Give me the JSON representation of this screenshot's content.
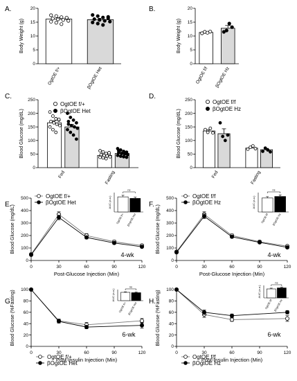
{
  "chart_data": [
    {
      "panel": "A.",
      "type": "bar",
      "ylabel": "Body Weight (g)",
      "ylim": [
        0,
        20
      ],
      "yticks": [
        0,
        5,
        10,
        15,
        20
      ],
      "categories": [
        "OgtOE f/+",
        "βOgtOE Het"
      ],
      "values": [
        16.1,
        15.9
      ],
      "errors": [
        0.5,
        0.5
      ],
      "fills": [
        "#ffffff",
        "#d9d9d9"
      ],
      "points": [
        [
          17.5,
          17.2,
          16.8,
          16.5,
          16.3,
          16.0,
          15.8,
          15.5,
          15.2,
          14.8,
          14.3,
          16.6
        ],
        [
          17.6,
          17.2,
          16.7,
          16.4,
          16.1,
          15.8,
          15.5,
          15.2,
          14.9,
          14.5,
          14.0,
          16.9
        ]
      ],
      "point_fill": [
        "open",
        "filled"
      ]
    },
    {
      "panel": "B.",
      "type": "bar",
      "ylabel": "Body Weight (g)",
      "ylim": [
        0,
        20
      ],
      "yticks": [
        0,
        5,
        10,
        15,
        20
      ],
      "categories": [
        "OgtOE f/f",
        "βOgtOE Hz"
      ],
      "values": [
        11.3,
        12.8
      ],
      "errors": [
        0.3,
        1.0
      ],
      "fills": [
        "#ffffff",
        "#d9d9d9"
      ],
      "points": [
        [
          11.0,
          11.5,
          11.2,
          11.6
        ],
        [
          11.5,
          12.0,
          14.5,
          13.2
        ]
      ],
      "point_fill": [
        "open",
        "filled"
      ]
    },
    {
      "panel": "C.",
      "type": "bar",
      "ylabel": "Blood Glucose (mg/dL)",
      "ylim": [
        0,
        250
      ],
      "yticks": [
        0,
        50,
        100,
        150,
        200,
        250
      ],
      "categories": [
        "Fed",
        "Fasting"
      ],
      "series": [
        {
          "name": "OgtOE f/+",
          "values": [
            165,
            45
          ],
          "errors": [
            8,
            4
          ],
          "fill": "#ffffff",
          "points": [
            [
              205,
              190,
              180,
              175,
              170,
              165,
              160,
              155,
              150,
              140,
              130,
              178
            ],
            [
              62,
              58,
              52,
              50,
              48,
              45,
              43,
              40,
              38,
              36,
              33,
              55
            ]
          ],
          "point_fill": "open"
        },
        {
          "name": "βOgtOE Het",
          "values": [
            150,
            52
          ],
          "errors": [
            9,
            5
          ],
          "fill": "#d9d9d9",
          "points": [
            [
              200,
              185,
              175,
              165,
              160,
              155,
              150,
              145,
              140,
              130,
              120,
              105,
              170
            ],
            [
              70,
              65,
              60,
              57,
              55,
              52,
              50,
              48,
              45,
              42,
              40,
              38,
              62
            ]
          ],
          "point_fill": "filled"
        }
      ]
    },
    {
      "panel": "D.",
      "type": "bar",
      "ylabel": "Blood Glucose (mg/dL)",
      "ylim": [
        0,
        250
      ],
      "yticks": [
        0,
        50,
        100,
        150,
        200,
        250
      ],
      "categories": [
        "Fed",
        "Fasting"
      ],
      "series": [
        {
          "name": "OgtOE f/f",
          "values": [
            135,
            72
          ],
          "errors": [
            5,
            4
          ],
          "fill": "#ffffff",
          "points": [
            [
              140,
              130,
              145,
              128
            ],
            [
              68,
              75,
              80,
              70
            ]
          ],
          "point_fill": "open"
        },
        {
          "name": "βOgtOE Hz",
          "values": [
            125,
            66
          ],
          "errors": [
            18,
            5
          ],
          "fill": "#d9d9d9",
          "points": [
            [
              165,
              115,
              100,
              120
            ],
            [
              60,
              72,
              65,
              58
            ]
          ],
          "point_fill": "filled"
        }
      ]
    },
    {
      "panel": "E.",
      "type": "line",
      "xlabel": "Post-Glucose Injection (Min)",
      "ylabel": "Blood Glucose (mg/dL)",
      "xlim": [
        0,
        120
      ],
      "ylim": [
        0,
        500
      ],
      "xticks": [
        0,
        30,
        60,
        90,
        120
      ],
      "yticks": [
        0,
        100,
        200,
        300,
        400,
        500
      ],
      "x": [
        0,
        30,
        60,
        90,
        120
      ],
      "annotation": "4-wk",
      "series": [
        {
          "name": "OgtOE f/+",
          "values": [
            50,
            370,
            200,
            150,
            120
          ],
          "errors": [
            5,
            20,
            15,
            12,
            10
          ],
          "marker": "open"
        },
        {
          "name": "βOgtOE Het",
          "values": [
            45,
            345,
            185,
            140,
            110
          ],
          "errors": [
            5,
            18,
            12,
            10,
            8
          ],
          "marker": "filled"
        }
      ],
      "inset": {
        "type": "bar",
        "ylabel": "AUC (a.u.)",
        "categories": [
          "OgtOE f/+",
          "βOgtOE Het"
        ],
        "values": [
          0.78,
          0.7
        ],
        "errors": [
          0.08,
          0.06
        ],
        "fills": [
          "#ffffff",
          "#000000"
        ],
        "annotation": "ns"
      }
    },
    {
      "panel": "F.",
      "type": "line",
      "xlabel": "Post-Glucose Injection (Min)",
      "ylabel": "Blood Glucose (mg/dL)",
      "xlim": [
        0,
        120
      ],
      "ylim": [
        0,
        500
      ],
      "xticks": [
        0,
        30,
        60,
        90,
        120
      ],
      "yticks": [
        0,
        100,
        200,
        300,
        400,
        500
      ],
      "x": [
        0,
        30,
        60,
        90,
        120
      ],
      "annotation": "4-wk",
      "series": [
        {
          "name": "OgtOE f/f",
          "values": [
            70,
            370,
            200,
            150,
            115
          ],
          "errors": [
            5,
            20,
            12,
            10,
            8
          ],
          "marker": "open"
        },
        {
          "name": "βOgtOE Hz",
          "values": [
            65,
            355,
            190,
            145,
            105
          ],
          "errors": [
            5,
            18,
            10,
            8,
            8
          ],
          "marker": "filled"
        }
      ],
      "inset": {
        "type": "bar",
        "ylabel": "AUC (a.u.)",
        "categories": [
          "OgtOE f/f",
          "βOgtOE Hz"
        ],
        "values": [
          0.72,
          0.8
        ],
        "errors": [
          0.07,
          0.08
        ],
        "fills": [
          "#ffffff",
          "#000000"
        ],
        "annotation": "ns"
      }
    },
    {
      "panel": "G.",
      "type": "line",
      "xlabel": "Post-Insulin Injection (Min)",
      "ylabel": "Blood Glucose (%Fasting)",
      "xlim": [
        0,
        120
      ],
      "ylim": [
        0,
        100
      ],
      "xticks": [
        0,
        30,
        60,
        90,
        120
      ],
      "yticks": [
        0,
        20,
        40,
        60,
        80,
        100
      ],
      "x": [
        0,
        30,
        60,
        120
      ],
      "annotation": "6-wk",
      "series": [
        {
          "name": "OgtOE f/+",
          "values": [
            100,
            45,
            38,
            45
          ],
          "errors": [
            0,
            3,
            4,
            4
          ],
          "marker": "open"
        },
        {
          "name": "βOgtOE Het",
          "values": [
            100,
            44,
            34,
            37
          ],
          "errors": [
            0,
            3,
            3,
            5
          ],
          "marker": "filled"
        }
      ],
      "inset": {
        "type": "bar",
        "ylabel": "AUC (a.u.)",
        "categories": [
          "OgtOE f/+",
          "βOgtOE Het"
        ],
        "values": [
          0.75,
          0.72
        ],
        "errors": [
          0.05,
          0.05
        ],
        "fills": [
          "#ffffff",
          "#000000"
        ],
        "annotation": "ns"
      }
    },
    {
      "panel": "H.",
      "type": "line",
      "xlabel": "Post-Insulin Injection (Min)",
      "ylabel": "Blood Glucose (%Fasting)",
      "xlim": [
        0,
        120
      ],
      "ylim": [
        0,
        100
      ],
      "xticks": [
        0,
        30,
        60,
        90,
        120
      ],
      "yticks": [
        0,
        20,
        40,
        60,
        80,
        100
      ],
      "x": [
        0,
        30,
        60,
        120
      ],
      "annotation": "6-wk",
      "series": [
        {
          "name": "OgtOE f/f",
          "values": [
            100,
            56,
            47,
            49
          ],
          "errors": [
            0,
            5,
            3,
            5
          ],
          "marker": "open"
        },
        {
          "name": "βOgtOE Hz",
          "values": [
            100,
            60,
            54,
            60
          ],
          "errors": [
            0,
            4,
            3,
            3
          ],
          "marker": "filled"
        }
      ],
      "inset": {
        "type": "bar",
        "ylabel": "AUC (a.u.)",
        "categories": [
          "OgtOE f/f",
          "βOgtOE Hz"
        ],
        "values": [
          0.72,
          0.8
        ],
        "errors": [
          0.06,
          0.05
        ],
        "fills": [
          "#ffffff",
          "#000000"
        ],
        "annotation": "ns"
      }
    }
  ]
}
